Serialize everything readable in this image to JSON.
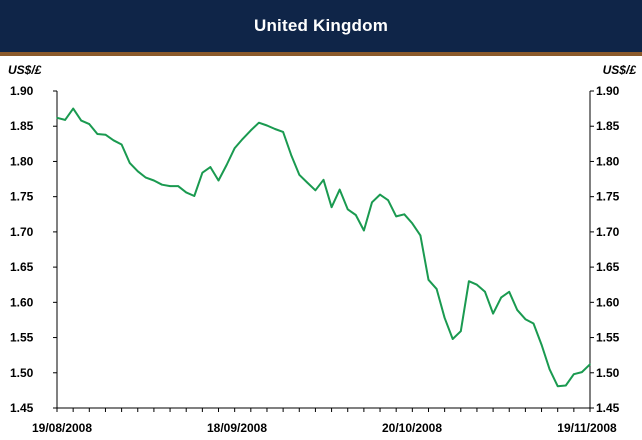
{
  "header": {
    "title": "United Kingdom"
  },
  "axis": {
    "left_unit": "US$/£",
    "right_unit": "US$/£"
  },
  "chart_data": {
    "type": "line",
    "title": "United Kingdom",
    "ylabel": "US$/£",
    "ylim": [
      1.45,
      1.9
    ],
    "yticks": [
      "1.90",
      "1.85",
      "1.80",
      "1.75",
      "1.70",
      "1.65",
      "1.60",
      "1.55",
      "1.50",
      "1.45"
    ],
    "xtick_labels": [
      "19/08/2008",
      "18/09/2008",
      "20/10/2008",
      "19/11/2008"
    ],
    "grid": false,
    "line_color": "#1a9a50",
    "series": [
      {
        "values": [
          1.862,
          1.859,
          1.875,
          1.858,
          1.853,
          1.839,
          1.838,
          1.83,
          1.824,
          1.798,
          1.786,
          1.777,
          1.773,
          1.767,
          1.765,
          1.765,
          1.756,
          1.751,
          1.784,
          1.792,
          1.773,
          1.795,
          1.819,
          1.832,
          1.844,
          1.855,
          1.851,
          1.846,
          1.842,
          1.809,
          1.781,
          1.77,
          1.759,
          1.774,
          1.735,
          1.76,
          1.732,
          1.724,
          1.702,
          1.742,
          1.753,
          1.745,
          1.722,
          1.725,
          1.712,
          1.695,
          1.632,
          1.619,
          1.578,
          1.548,
          1.559,
          1.63,
          1.625,
          1.615,
          1.584,
          1.607,
          1.615,
          1.589,
          1.576,
          1.57,
          1.54,
          1.505,
          1.481,
          1.482,
          1.498,
          1.501,
          1.512
        ]
      }
    ]
  }
}
